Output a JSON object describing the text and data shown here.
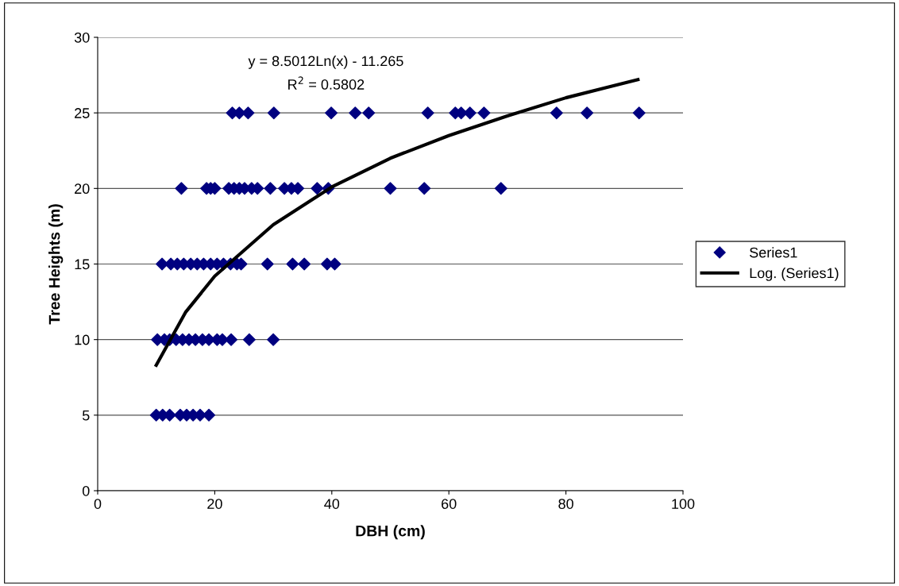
{
  "chart_data": {
    "type": "scatter",
    "xlabel": "DBH (cm)",
    "ylabel": "Tree Heights (m)",
    "xlim": [
      0,
      100
    ],
    "xticks": [
      0,
      20,
      40,
      60,
      80,
      100
    ],
    "ylim": [
      0,
      30
    ],
    "yticks": [
      0,
      5,
      10,
      15,
      20,
      25,
      30
    ],
    "grid": "y",
    "legend": "right",
    "marker": "diamond",
    "annotations": [
      "y = 8.5012Ln(x) - 11.265",
      "R$^{2}$ = 0.5802"
    ],
    "series": [
      {
        "name": "Series1",
        "color": "#000080",
        "x": [
          23.0,
          24.2,
          25.7,
          30.1,
          39.9,
          44.0,
          46.3,
          56.4,
          61.1,
          62.1,
          63.6,
          66.0,
          78.4,
          83.6,
          92.5,
          14.3,
          18.6,
          19.3,
          20.0,
          22.4,
          23.3,
          24.2,
          25.1,
          26.3,
          27.3,
          29.5,
          31.9,
          33.1,
          34.2,
          37.5,
          39.4,
          50.0,
          55.8,
          68.9,
          11.0,
          12.5,
          13.6,
          14.7,
          15.9,
          17.0,
          18.1,
          19.3,
          20.4,
          21.5,
          22.7,
          23.8,
          24.5,
          29.0,
          33.3,
          35.3,
          39.2,
          40.5,
          10.2,
          11.4,
          12.3,
          13.4,
          14.5,
          15.6,
          16.7,
          17.9,
          19.0,
          20.4,
          21.3,
          22.8,
          25.9,
          30.0,
          10.0,
          11.1,
          12.3,
          14.1,
          15.2,
          16.3,
          17.5,
          19.0
        ],
        "values": [
          25,
          25,
          25,
          25,
          25,
          25,
          25,
          25,
          25,
          25,
          25,
          25,
          25,
          25,
          25,
          20,
          20,
          20,
          20,
          20,
          20,
          20,
          20,
          20,
          20,
          20,
          20,
          20,
          20,
          20,
          20,
          20,
          20,
          20,
          15,
          15,
          15,
          15,
          15,
          15,
          15,
          15,
          15,
          15,
          15,
          15,
          15,
          15,
          15,
          15,
          15,
          15,
          10,
          10,
          10,
          10,
          10,
          10,
          10,
          10,
          10,
          10,
          10,
          10,
          10,
          10,
          5,
          5,
          5,
          5,
          5,
          5,
          5,
          5
        ]
      },
      {
        "name": "Log. (Series1)",
        "color": "#000000",
        "type": "line",
        "line_style": "solid",
        "marker": "none",
        "x": [
          10,
          15,
          20,
          30,
          40,
          50,
          60,
          70,
          80,
          92.3
        ],
        "values": [
          8.3,
          11.8,
          14.2,
          17.6,
          20.1,
          22.0,
          23.5,
          24.8,
          26.0,
          27.2
        ]
      }
    ]
  }
}
